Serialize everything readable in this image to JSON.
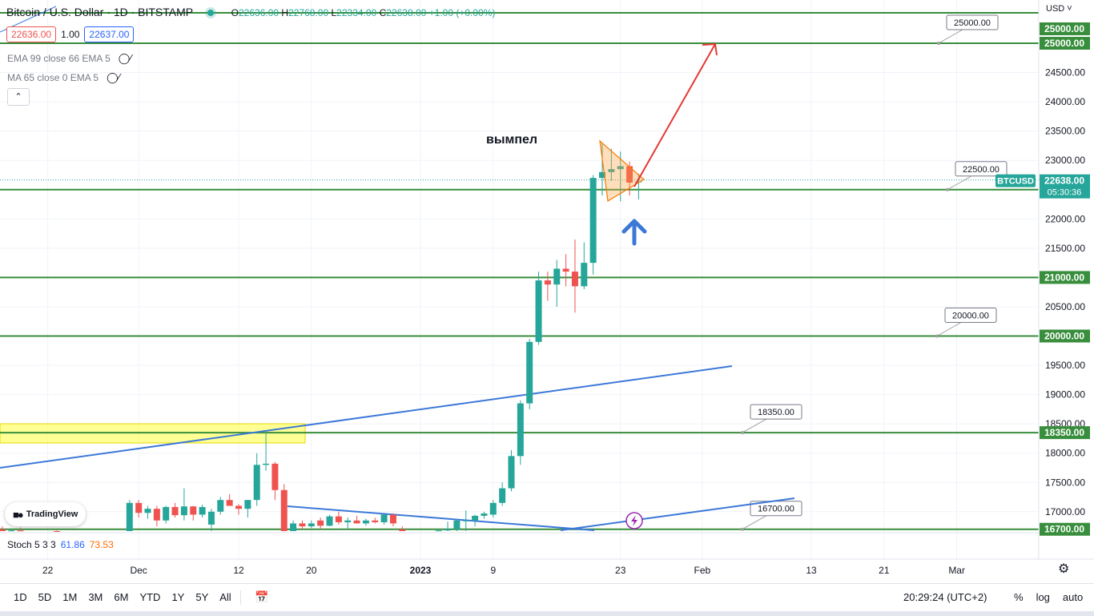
{
  "header": {
    "title": "Bitcoin / U.S. Dollar · 1D · BITSTAMP",
    "ohlc": {
      "open_label": "O",
      "open": "22636.00",
      "high_label": "H",
      "high": "22768.00",
      "low_label": "L",
      "low": "22334.00",
      "close_label": "C",
      "close": "22638.00",
      "change": "+1.00 (+0.00%)"
    },
    "sell_price": "22636.00",
    "spread": "1.00",
    "buy_price": "22637.00"
  },
  "indicators": [
    {
      "label": "EMA 99 close 66 EMA 5"
    },
    {
      "label": "MA 65 close 0 EMA 5"
    }
  ],
  "stoch": {
    "label": "Stoch 5 3 3",
    "k": "61.86",
    "d": "73.53"
  },
  "watermark": "TradingView",
  "currency": "USD",
  "annotation": "вымпел",
  "chart_data": {
    "type": "candlestick",
    "symbol": "BTCUSD",
    "price_axis": {
      "ticks": [
        "25000.00",
        "24500.00",
        "24000.00",
        "23500.00",
        "23000.00",
        "22500.00",
        "22000.00",
        "21500.00",
        "21000.00",
        "20500.00",
        "20000.00",
        "19500.00",
        "19000.00",
        "18500.00",
        "18000.00",
        "17500.00",
        "17000.00"
      ],
      "range": [
        16600,
        25500
      ]
    },
    "time_axis": {
      "ticks": [
        {
          "label": "22",
          "day": -41
        },
        {
          "label": "Dec",
          "day": -31
        },
        {
          "label": "12",
          "day": -20
        },
        {
          "label": "20",
          "day": -12
        },
        {
          "label": "2023",
          "day": 0
        },
        {
          "label": "9",
          "day": 8
        },
        {
          "label": "23",
          "day": 22
        },
        {
          "label": "Feb",
          "day": 31
        },
        {
          "label": "13",
          "day": 43
        },
        {
          "label": "21",
          "day": 51
        },
        {
          "label": "Mar",
          "day": 59
        }
      ]
    },
    "horizontal_levels": [
      {
        "price": 25200,
        "label": "",
        "marker": ""
      },
      {
        "price": 25000,
        "label": "25000.00",
        "marker": "25000.00"
      },
      {
        "price": 22500,
        "label": "22500.00",
        "marker": "22500.00"
      },
      {
        "price": 21000,
        "label": "",
        "marker": "21000.00"
      },
      {
        "price": 20000,
        "label": "20000.00",
        "marker": "20000.00"
      },
      {
        "price": 18350,
        "label": "18350.00",
        "marker": "18350.00"
      },
      {
        "price": 16700,
        "label": "16700.00",
        "marker": "16700.00"
      }
    ],
    "last_price": {
      "value": "22638.00",
      "countdown": "05:30:36",
      "symbol_tag": "BTCUSD"
    },
    "top_marker": "25000.00",
    "candles": [
      [
        -49,
        16850,
        16900,
        16650,
        16700
      ],
      [
        -48,
        16700,
        16780,
        16600,
        16650
      ],
      [
        -47,
        16650,
        16720,
        16580,
        16700
      ],
      [
        -46,
        16700,
        16750,
        16620,
        16640
      ],
      [
        -45,
        16640,
        16700,
        16600,
        16680
      ],
      [
        -44,
        16680,
        16730,
        16620,
        16650
      ],
      [
        -40,
        16620,
        16680,
        16550,
        16600
      ],
      [
        -39,
        16600,
        16650,
        16540,
        16620
      ],
      [
        -36,
        16500,
        16560,
        16420,
        16450
      ],
      [
        -33,
        16550,
        16620,
        16480,
        16590
      ],
      [
        -32,
        16600,
        17200,
        16560,
        17150
      ],
      [
        -31,
        17150,
        17200,
        16900,
        16980
      ],
      [
        -30,
        16980,
        17100,
        16880,
        17050
      ],
      [
        -29,
        17050,
        17100,
        16750,
        16850
      ],
      [
        -28,
        16850,
        17100,
        16800,
        17080
      ],
      [
        -27,
        17080,
        17150,
        16900,
        16940
      ],
      [
        -26,
        16940,
        17400,
        16850,
        17090
      ],
      [
        -25,
        17090,
        17100,
        16850,
        16950
      ],
      [
        -24,
        16950,
        17120,
        16900,
        17080
      ],
      [
        -23,
        16780,
        17050,
        16650,
        17000
      ],
      [
        -22,
        17000,
        17250,
        16950,
        17200
      ],
      [
        -21,
        17200,
        17300,
        17100,
        17100
      ],
      [
        -20,
        17100,
        17130,
        16950,
        17050
      ],
      [
        -19,
        17050,
        17200,
        16900,
        17200
      ],
      [
        -18,
        17200,
        18000,
        17100,
        17800
      ],
      [
        -17,
        17800,
        18350,
        17700,
        17820
      ],
      [
        -16,
        17820,
        17850,
        17200,
        17370
      ],
      [
        -15,
        17370,
        17470,
        16550,
        16650
      ],
      [
        -14,
        16650,
        16850,
        16600,
        16800
      ],
      [
        -13,
        16800,
        16850,
        16700,
        16750
      ],
      [
        -12,
        16750,
        16850,
        16720,
        16800
      ],
      [
        -11,
        16850,
        16900,
        16700,
        16760
      ],
      [
        -10,
        16760,
        16950,
        16750,
        16920
      ],
      [
        -9,
        16920,
        17000,
        16780,
        16820
      ],
      [
        -8,
        16820,
        16900,
        16700,
        16850
      ],
      [
        -7,
        16850,
        16930,
        16800,
        16800
      ],
      [
        -6,
        16800,
        16880,
        16760,
        16850
      ],
      [
        -5,
        16850,
        16900,
        16800,
        16820
      ],
      [
        -4,
        16820,
        16950,
        16780,
        16950
      ],
      [
        -3,
        16950,
        16970,
        16750,
        16800
      ],
      [
        -2,
        16700,
        16750,
        16600,
        16650
      ],
      [
        2,
        16650,
        16700,
        16600,
        16680
      ],
      [
        3,
        16680,
        16830,
        16650,
        16700
      ],
      [
        4,
        16700,
        16880,
        16650,
        16850
      ],
      [
        5,
        16850,
        17020,
        16600,
        16850
      ],
      [
        6,
        16850,
        16950,
        16750,
        16930
      ],
      [
        7,
        16930,
        17000,
        16880,
        16970
      ],
      [
        8,
        16950,
        17200,
        16900,
        17150
      ],
      [
        9,
        17150,
        17500,
        17100,
        17400
      ],
      [
        10,
        17400,
        18050,
        17350,
        17950
      ],
      [
        11,
        17950,
        18900,
        17800,
        18850
      ],
      [
        12,
        18850,
        19950,
        18750,
        19900
      ],
      [
        13,
        19900,
        21100,
        19850,
        20950
      ],
      [
        14,
        20950,
        21100,
        20600,
        20880
      ],
      [
        15,
        20880,
        21300,
        20500,
        21150
      ],
      [
        16,
        21150,
        21400,
        20850,
        21100
      ],
      [
        17,
        21100,
        21650,
        20400,
        20850
      ],
      [
        18,
        20850,
        21600,
        20800,
        21250
      ],
      [
        19,
        21250,
        22750,
        21050,
        22700
      ],
      [
        20,
        22700,
        23300,
        22400,
        22800
      ],
      [
        21,
        22800,
        23200,
        22650,
        22850
      ],
      [
        22,
        22850,
        23150,
        22300,
        22900
      ],
      [
        23,
        22900,
        22980,
        22400,
        22620
      ],
      [
        24,
        22636,
        22768,
        22334,
        22638
      ]
    ]
  }
}
